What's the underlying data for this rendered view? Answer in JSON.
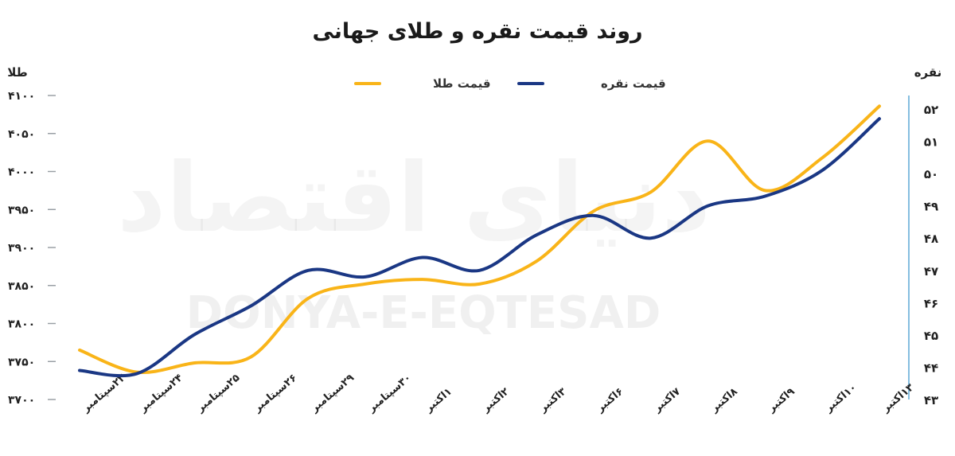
{
  "chart_data": {
    "type": "line",
    "title": "روند قیمت نقره و طلای جهانی",
    "left_axis_label": "طلا",
    "right_axis_label": "نقره",
    "left_axis": {
      "min": 3700,
      "max": 4100,
      "step": 50,
      "tick_labels": [
        "۳۷۰۰",
        "۳۷۵۰",
        "۳۸۰۰",
        "۳۸۵۰",
        "۳۹۰۰",
        "۳۹۵۰",
        "۴۰۰۰",
        "۴۰۵۰",
        "۴۱۰۰"
      ]
    },
    "right_axis": {
      "min": 43,
      "max": 52,
      "step": 1,
      "tick_labels": [
        "۴۳",
        "۴۴",
        "۴۵",
        "۴۶",
        "۴۷",
        "۴۸",
        "۴۹",
        "۵۰",
        "۵۱",
        "۵۲"
      ]
    },
    "categories": [
      "۲۳سپتامبر",
      "۲۴سپتامبر",
      "۲۵سپتامبر",
      "۲۶سپتامبر",
      "۲۹سپتامبر",
      "۳۰سپتامبر",
      "۱اکتبر",
      "۲اکتبر",
      "۳اکتبر",
      "۶اکتبر",
      "۷اکتبر",
      "۸اکتبر",
      "۹اکتبر",
      "۱۰اکتبر",
      "۱۳اکتبر"
    ],
    "series": [
      {
        "name": "قیمت طلا",
        "axis": "left",
        "color": "#f9b418",
        "values": [
          3765,
          3736,
          3748,
          3756,
          3833,
          3852,
          3858,
          3852,
          3882,
          3948,
          3973,
          4040,
          3975,
          4018,
          4086
        ]
      },
      {
        "name": "قیمت نقره",
        "axis": "right",
        "color": "#1a3784",
        "values": [
          43.9,
          43.8,
          45.0,
          45.9,
          47.0,
          46.8,
          47.4,
          47.0,
          48.1,
          48.7,
          48.0,
          49.0,
          49.3,
          50.1,
          51.7
        ]
      }
    ],
    "grid": false,
    "legend_position": "top-center"
  },
  "watermark": {
    "text": "DONYA-E-EQTESAD",
    "logo_text": "دنیای اقتصاد"
  }
}
